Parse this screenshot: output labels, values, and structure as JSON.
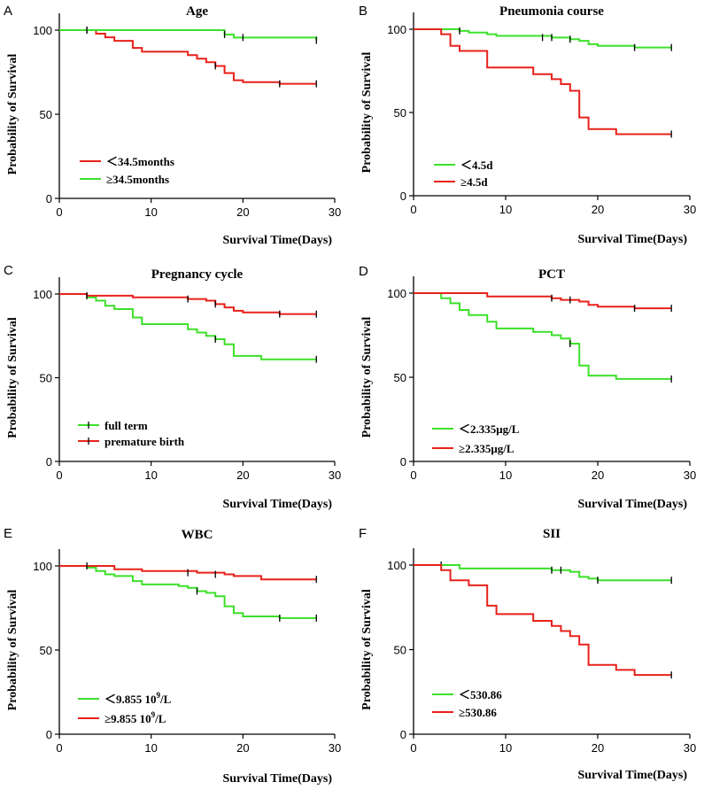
{
  "figure": {
    "x_axis_label": "Survival Time(Days)",
    "y_axis_label": "Probability of Survival"
  },
  "chart_data": [
    {
      "type": "line",
      "panel": "A",
      "title": "Age",
      "xlabel": "Survival Time(Days)",
      "ylabel": "Probability of Survival",
      "xlim": [
        0,
        30
      ],
      "ylim": [
        0,
        100
      ],
      "xticks": [
        0,
        10,
        20,
        30
      ],
      "yticks": [
        0,
        50,
        100
      ],
      "legend_position": "bottom-left",
      "series": [
        {
          "name": "＜34.5months",
          "color": "#e8211b",
          "steps": [
            [
              0,
              100
            ],
            [
              3,
              100
            ],
            [
              4,
              97.9
            ],
            [
              5,
              95.7
            ],
            [
              6,
              93.6
            ],
            [
              8,
              89.4
            ],
            [
              9,
              87.2
            ],
            [
              14,
              85.1
            ],
            [
              15,
              83
            ],
            [
              16,
              80.9
            ],
            [
              17,
              78.7
            ],
            [
              18,
              74.5
            ],
            [
              19,
              70.2
            ],
            [
              20,
              69.1
            ],
            [
              24,
              68.1
            ],
            [
              28,
              68.1
            ]
          ],
          "censored": [
            [
              3,
              100
            ],
            [
              17,
              78.7
            ],
            [
              24,
              68.1
            ],
            [
              28,
              68.1
            ]
          ]
        },
        {
          "name": "≥34.5months",
          "color": "#3de02a",
          "steps": [
            [
              0,
              100
            ],
            [
              18,
              97.4
            ],
            [
              19,
              95.6
            ],
            [
              28,
              93.9
            ]
          ],
          "censored": [
            [
              3,
              100
            ],
            [
              18,
              97.4
            ],
            [
              20,
              95.6
            ],
            [
              28,
              93.9
            ]
          ]
        }
      ]
    },
    {
      "type": "line",
      "panel": "B",
      "title": "Pneumonia course",
      "xlabel": "Survival Time(Days)",
      "ylabel": "Probability of Survival",
      "xlim": [
        0,
        30
      ],
      "ylim": [
        0,
        100
      ],
      "xticks": [
        0,
        10,
        20,
        30
      ],
      "yticks": [
        0,
        50,
        100
      ],
      "legend_position": "bottom-left",
      "series": [
        {
          "name": "＜4.5d",
          "color": "#3de02a",
          "steps": [
            [
              0,
              100
            ],
            [
              5,
              99
            ],
            [
              6,
              98
            ],
            [
              8,
              97
            ],
            [
              9,
              96
            ],
            [
              15,
              95
            ],
            [
              17,
              94
            ],
            [
              18,
              93
            ],
            [
              19,
              91
            ],
            [
              20,
              90
            ],
            [
              24,
              89
            ],
            [
              28,
              89
            ]
          ],
          "censored": [
            [
              5,
              99
            ],
            [
              14,
              95
            ],
            [
              15,
              95
            ],
            [
              17,
              94
            ],
            [
              24,
              89
            ],
            [
              28,
              89
            ]
          ]
        },
        {
          "name": "≥4.5d",
          "color": "#e8211b",
          "steps": [
            [
              0,
              100
            ],
            [
              3,
              97
            ],
            [
              4,
              90
            ],
            [
              5,
              87
            ],
            [
              8,
              77
            ],
            [
              13,
              73
            ],
            [
              15,
              70
            ],
            [
              16,
              67
            ],
            [
              17,
              63
            ],
            [
              18,
              47
            ],
            [
              19,
              40
            ],
            [
              22,
              37
            ],
            [
              28,
              37
            ]
          ],
          "censored": [
            [
              28,
              37
            ]
          ]
        }
      ]
    },
    {
      "type": "line",
      "panel": "C",
      "title": "Pregnancy cycle",
      "xlabel": "Survival Time(Days)",
      "ylabel": "Probability of Survival",
      "xlim": [
        0,
        30
      ],
      "ylim": [
        0,
        100
      ],
      "xticks": [
        0,
        10,
        20,
        30
      ],
      "yticks": [
        0,
        50,
        100
      ],
      "legend_position": "bottom-left",
      "series": [
        {
          "name": "full term",
          "color": "#3de02a",
          "steps": [
            [
              0,
              100
            ],
            [
              3,
              98
            ],
            [
              4,
              96
            ],
            [
              5,
              93
            ],
            [
              6,
              91
            ],
            [
              8,
              86
            ],
            [
              9,
              82
            ],
            [
              14,
              79
            ],
            [
              15,
              77
            ],
            [
              16,
              75
            ],
            [
              17,
              73
            ],
            [
              18,
              70
            ],
            [
              19,
              63
            ],
            [
              22,
              61
            ],
            [
              28,
              61
            ]
          ],
          "censored": [
            [
              17,
              73
            ],
            [
              28,
              61
            ]
          ]
        },
        {
          "name": "premature birth",
          "color": "#e8211b",
          "steps": [
            [
              0,
              100
            ],
            [
              3,
              99
            ],
            [
              8,
              98
            ],
            [
              14,
              97
            ],
            [
              16,
              96
            ],
            [
              17,
              94
            ],
            [
              18,
              92
            ],
            [
              19,
              90
            ],
            [
              20,
              89
            ],
            [
              24,
              88
            ],
            [
              28,
              88
            ]
          ],
          "censored": [
            [
              3,
              99
            ],
            [
              14,
              97
            ],
            [
              17,
              94
            ],
            [
              24,
              88
            ],
            [
              28,
              88
            ]
          ]
        }
      ]
    },
    {
      "type": "line",
      "panel": "D",
      "title": "PCT",
      "xlabel": "Survival Time(Days)",
      "ylabel": "Probability of Survival",
      "xlim": [
        0,
        30
      ],
      "ylim": [
        0,
        100
      ],
      "xticks": [
        0,
        10,
        20,
        30
      ],
      "yticks": [
        0,
        50,
        100
      ],
      "legend_position": "bottom-left",
      "series": [
        {
          "name": "＜2.335μg/L",
          "color": "#3de02a",
          "steps": [
            [
              0,
              100
            ],
            [
              3,
              97
            ],
            [
              4,
              94
            ],
            [
              5,
              90
            ],
            [
              6,
              87
            ],
            [
              8,
              83
            ],
            [
              9,
              79
            ],
            [
              13,
              77
            ],
            [
              15,
              75
            ],
            [
              16,
              73
            ],
            [
              17,
              70
            ],
            [
              18,
              57
            ],
            [
              19,
              51
            ],
            [
              22,
              49
            ],
            [
              28,
              49
            ]
          ],
          "censored": [
            [
              17,
              70
            ],
            [
              28,
              49
            ]
          ]
        },
        {
          "name": "≥2.335μg/L",
          "color": "#e8211b",
          "steps": [
            [
              0,
              100
            ],
            [
              8,
              98
            ],
            [
              15,
              97
            ],
            [
              16,
              96
            ],
            [
              18,
              95
            ],
            [
              19,
              93
            ],
            [
              20,
              92
            ],
            [
              24,
              91
            ],
            [
              28,
              91
            ]
          ],
          "censored": [
            [
              15,
              97
            ],
            [
              17,
              96
            ],
            [
              24,
              91
            ],
            [
              28,
              91
            ]
          ]
        }
      ]
    },
    {
      "type": "line",
      "panel": "E",
      "title": "WBC",
      "xlabel": "Survival Time(Days)",
      "ylabel": "Probability of Survival",
      "xlim": [
        0,
        30
      ],
      "ylim": [
        0,
        100
      ],
      "xticks": [
        0,
        10,
        20,
        30
      ],
      "yticks": [
        0,
        50,
        100
      ],
      "legend_position": "bottom-left",
      "series": [
        {
          "name": "＜9.855 10^9/L",
          "color": "#3de02a",
          "steps": [
            [
              0,
              100
            ],
            [
              3,
              99
            ],
            [
              4,
              97
            ],
            [
              5,
              95
            ],
            [
              6,
              94
            ],
            [
              8,
              91
            ],
            [
              9,
              89
            ],
            [
              13,
              88
            ],
            [
              14,
              87
            ],
            [
              15,
              85
            ],
            [
              16,
              84
            ],
            [
              17,
              82
            ],
            [
              18,
              76
            ],
            [
              19,
              72
            ],
            [
              20,
              70
            ],
            [
              24,
              69
            ],
            [
              28,
              69
            ]
          ],
          "censored": [
            [
              15,
              85
            ],
            [
              24,
              69
            ],
            [
              28,
              69
            ]
          ]
        },
        {
          "name": "≥9.855 10^9/L",
          "color": "#e8211b",
          "steps": [
            [
              0,
              100
            ],
            [
              6,
              98
            ],
            [
              9,
              97
            ],
            [
              15,
              96
            ],
            [
              18,
              95
            ],
            [
              19,
              94
            ],
            [
              22,
              92
            ],
            [
              28,
              92
            ]
          ],
          "censored": [
            [
              3,
              100
            ],
            [
              14,
              96
            ],
            [
              17,
              95
            ],
            [
              28,
              92
            ]
          ]
        }
      ]
    },
    {
      "type": "line",
      "panel": "F",
      "title": "SII",
      "xlabel": "Survival Time(Days)",
      "ylabel": "Probability of Survival",
      "xlim": [
        0,
        30
      ],
      "ylim": [
        0,
        100
      ],
      "xticks": [
        0,
        10,
        20,
        30
      ],
      "yticks": [
        0,
        50,
        100
      ],
      "legend_position": "bottom-left",
      "series": [
        {
          "name": "＜530.86",
          "color": "#3de02a",
          "steps": [
            [
              0,
              100
            ],
            [
              5,
              98
            ],
            [
              15,
              97
            ],
            [
              17,
              96
            ],
            [
              18,
              93
            ],
            [
              19,
              92
            ],
            [
              20,
              91
            ],
            [
              28,
              91
            ]
          ],
          "censored": [
            [
              3,
              100
            ],
            [
              15,
              97
            ],
            [
              16,
              97
            ],
            [
              20,
              91
            ],
            [
              28,
              91
            ]
          ]
        },
        {
          "name": "≥530.86",
          "color": "#e8211b",
          "steps": [
            [
              0,
              100
            ],
            [
              3,
              97
            ],
            [
              4,
              91
            ],
            [
              6,
              88
            ],
            [
              8,
              76
            ],
            [
              9,
              71
            ],
            [
              13,
              67
            ],
            [
              15,
              64
            ],
            [
              16,
              61
            ],
            [
              17,
              58
            ],
            [
              18,
              53
            ],
            [
              19,
              41
            ],
            [
              22,
              38
            ],
            [
              24,
              35
            ],
            [
              28,
              35
            ]
          ],
          "censored": [
            [
              28,
              35
            ]
          ]
        }
      ]
    }
  ]
}
